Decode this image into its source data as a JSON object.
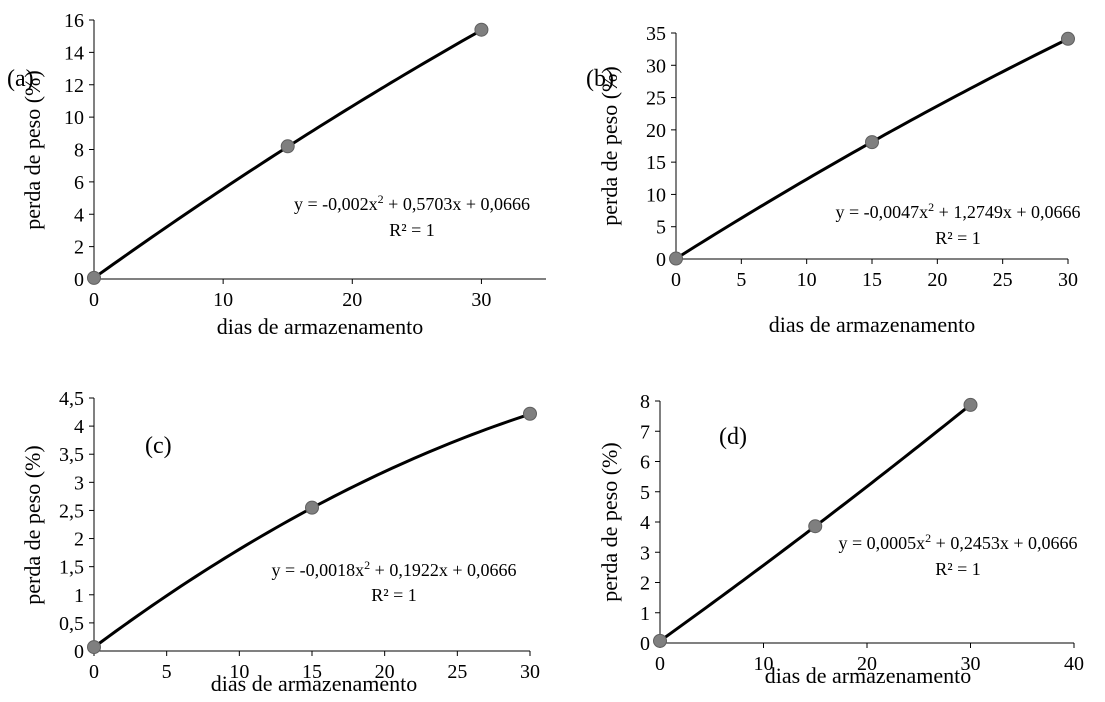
{
  "chart_data": [
    {
      "type": "scatter",
      "panel_label": "(a)",
      "xlabel": "dias de armazenamento",
      "ylabel": "perda de peso (%)",
      "xlim": [
        0,
        35
      ],
      "ylim": [
        0,
        16
      ],
      "xticks": [
        0,
        10,
        20,
        30
      ],
      "yticks": [
        0,
        2,
        4,
        6,
        8,
        10,
        12,
        14,
        16
      ],
      "xtick_labels": [
        "0",
        "10",
        "20",
        "30"
      ],
      "ytick_labels": [
        "0",
        "2",
        "4",
        "6",
        "8",
        "10",
        "12",
        "14",
        "16"
      ],
      "grid": false,
      "points": [
        {
          "x": 0,
          "y": 0.07
        },
        {
          "x": 15,
          "y": 8.2
        },
        {
          "x": 30,
          "y": 15.4
        }
      ],
      "trendline": {
        "type": "polynomial",
        "coefficients": [
          -0.002,
          0.5703,
          0.0666
        ]
      },
      "equation_prefix": "y = -0,002x",
      "equation_suffix": " + 0,5703x + 0,0666",
      "r2_text": "R² = 1"
    },
    {
      "type": "scatter",
      "panel_label": "(b)",
      "xlabel": "dias de armazenamento",
      "ylabel": "perda de peso (%)",
      "xlim": [
        0,
        30
      ],
      "ylim": [
        0,
        35
      ],
      "xticks": [
        0,
        5,
        10,
        15,
        20,
        25,
        30
      ],
      "yticks": [
        0,
        5,
        10,
        15,
        20,
        25,
        30,
        35
      ],
      "xtick_labels": [
        "0",
        "5",
        "10",
        "15",
        "20",
        "25",
        "30"
      ],
      "ytick_labels": [
        "0",
        "5",
        "10",
        "15",
        "20",
        "25",
        "30",
        "35"
      ],
      "grid": false,
      "points": [
        {
          "x": 0,
          "y": 0.07
        },
        {
          "x": 15,
          "y": 18.1
        },
        {
          "x": 30,
          "y": 34.1
        }
      ],
      "trendline": {
        "type": "polynomial",
        "coefficients": [
          -0.0047,
          1.2749,
          0.0666
        ]
      },
      "equation_prefix": "y = -0,0047x",
      "equation_suffix": " + 1,2749x + 0,0666",
      "r2_text": "R² = 1"
    },
    {
      "type": "scatter",
      "panel_label": "(c)",
      "xlabel": "dias de armazenamento",
      "ylabel": "perda de peso (%)",
      "xlim": [
        0,
        30
      ],
      "ylim": [
        0,
        4.5
      ],
      "xticks": [
        0,
        5,
        10,
        15,
        20,
        25,
        30
      ],
      "yticks": [
        0,
        0.5,
        1,
        1.5,
        2,
        2.5,
        3,
        3.5,
        4,
        4.5
      ],
      "xtick_labels": [
        "0",
        "5",
        "10",
        "15",
        "20",
        "25",
        "30"
      ],
      "ytick_labels": [
        "0",
        "0,5",
        "1",
        "1,5",
        "2",
        "2,5",
        "3",
        "3,5",
        "4",
        "4,5"
      ],
      "grid": false,
      "points": [
        {
          "x": 0,
          "y": 0.07
        },
        {
          "x": 15,
          "y": 2.55
        },
        {
          "x": 30,
          "y": 4.22
        }
      ],
      "trendline": {
        "type": "polynomial",
        "coefficients": [
          -0.0018,
          0.1922,
          0.0666
        ]
      },
      "equation_prefix": "y = -0,0018x",
      "equation_suffix": " + 0,1922x + 0,0666",
      "r2_text": "R² = 1"
    },
    {
      "type": "scatter",
      "panel_label": "(d)",
      "xlabel": "dias de armazenamento",
      "ylabel": "perda de peso (%)",
      "xlim": [
        0,
        40
      ],
      "ylim": [
        0,
        8
      ],
      "xticks": [
        0,
        10,
        20,
        30,
        40
      ],
      "yticks": [
        0,
        1,
        2,
        3,
        4,
        5,
        6,
        7,
        8
      ],
      "xtick_labels": [
        "0",
        "10",
        "20",
        "30",
        "40"
      ],
      "ytick_labels": [
        "0",
        "1",
        "2",
        "3",
        "4",
        "5",
        "6",
        "7",
        "8"
      ],
      "grid": false,
      "points": [
        {
          "x": 0,
          "y": 0.07
        },
        {
          "x": 15,
          "y": 3.86
        },
        {
          "x": 30,
          "y": 7.87
        }
      ],
      "trendline": {
        "type": "polynomial",
        "coefficients": [
          0.0005,
          0.2453,
          0.0666
        ]
      },
      "equation_prefix": "y = 0,0005x",
      "equation_suffix": " + 0,2453x + 0,0666",
      "r2_text": "R² = 1"
    }
  ],
  "style": {
    "line_color": "#000000",
    "marker_color": "#7f7f7f",
    "axis_color": "#000000"
  }
}
